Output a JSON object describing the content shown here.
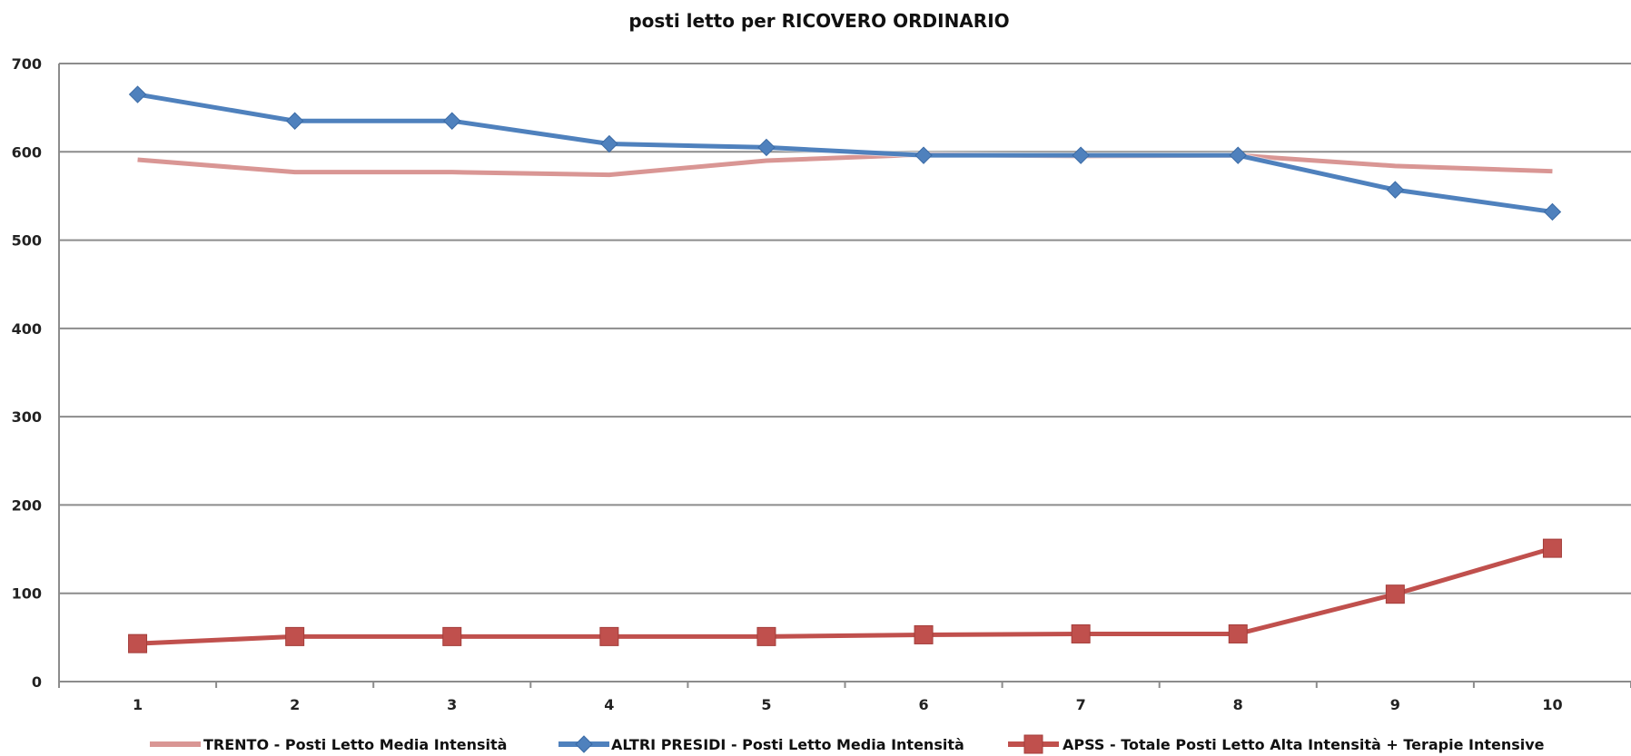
{
  "chart_data": {
    "type": "line",
    "title": "posti letto per RICOVERO ORDINARIO",
    "xlabel": "",
    "ylabel": "",
    "categories": [
      "1",
      "2",
      "3",
      "4",
      "5",
      "6",
      "7",
      "8",
      "9",
      "10"
    ],
    "ylim": [
      0,
      700
    ],
    "yticks": [
      0,
      100,
      200,
      300,
      400,
      500,
      600,
      700
    ],
    "grid": true,
    "legend_position": "bottom",
    "series": [
      {
        "name": "TRENTO - Posti Letto Media Intensità",
        "color": "#d99694",
        "marker": "none",
        "values": [
          591,
          577,
          577,
          574,
          590,
          597,
          595,
          596,
          584,
          578
        ]
      },
      {
        "name": "ALTRI PRESIDI - Posti Letto Media Intensità",
        "color": "#4f81bd",
        "marker": "diamond",
        "values": [
          665,
          635,
          635,
          609,
          605,
          596,
          596,
          596,
          557,
          532
        ]
      },
      {
        "name": "APSS - Totale Posti Letto Alta Intensità + Terapie Intensive",
        "color": "#c0504d",
        "marker": "square",
        "values": [
          43,
          51,
          51,
          51,
          51,
          53,
          54,
          54,
          99,
          151
        ]
      }
    ]
  }
}
